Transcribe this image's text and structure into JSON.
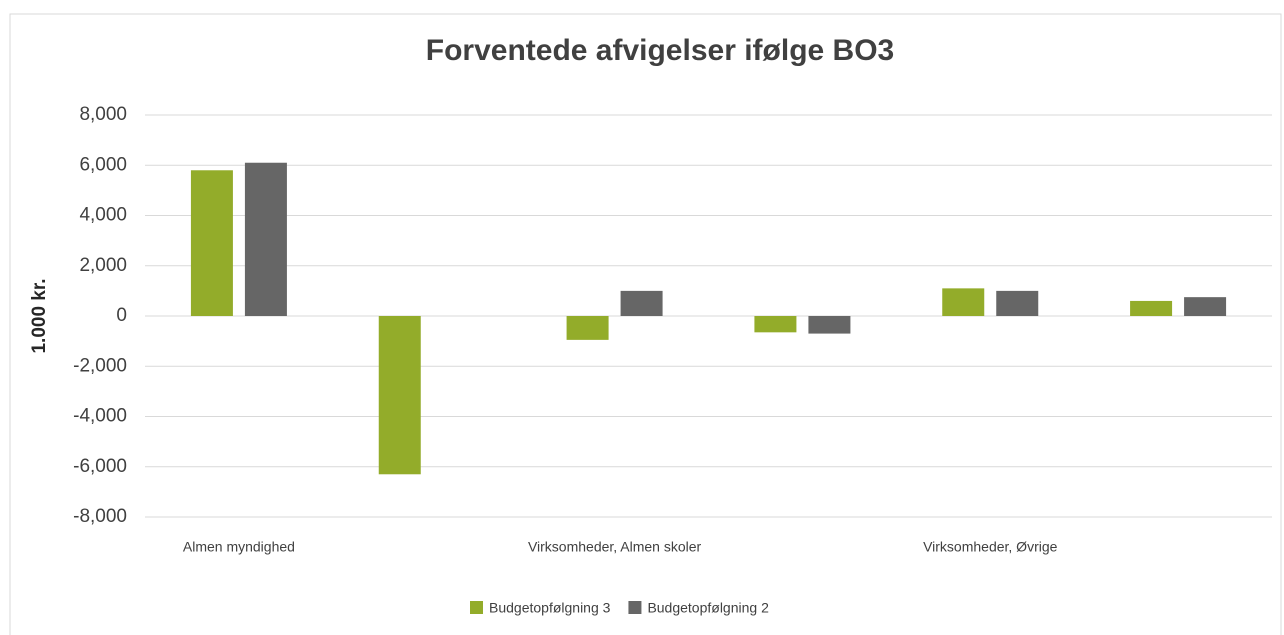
{
  "chart_data": {
    "type": "bar",
    "title": "Forventede afvigelser ifølge BO3",
    "y_label": "1.000 kr.",
    "categories": [
      "Almen myndighed",
      null,
      "Virksomheder, Almen skoler",
      null,
      "Virksomheder, Øvrige",
      null
    ],
    "series": [
      {
        "name": "Budgetopfølgning 3",
        "color": "#93ac2a",
        "values": [
          5800,
          -6300,
          -950,
          -650,
          1100,
          600
        ]
      },
      {
        "name": "Budgetopfølgning 2",
        "color": "#666666",
        "values": [
          6100,
          null,
          1000,
          -700,
          1000,
          750
        ]
      }
    ],
    "ylim": [
      -8000,
      8000
    ],
    "yticks": [
      {
        "value": -8000,
        "label": "-8,000"
      },
      {
        "value": -6000,
        "label": "-6,000"
      },
      {
        "value": -4000,
        "label": "-4,000"
      },
      {
        "value": -2000,
        "label": "-2,000"
      },
      0,
      {
        "value": 2000,
        "label": "2,000"
      },
      {
        "value": 4000,
        "label": "4,000"
      },
      {
        "value": 6000,
        "label": "6,000"
      },
      {
        "value": 8000,
        "label": "8,000"
      }
    ],
    "grid": true,
    "legend": "bottom"
  }
}
